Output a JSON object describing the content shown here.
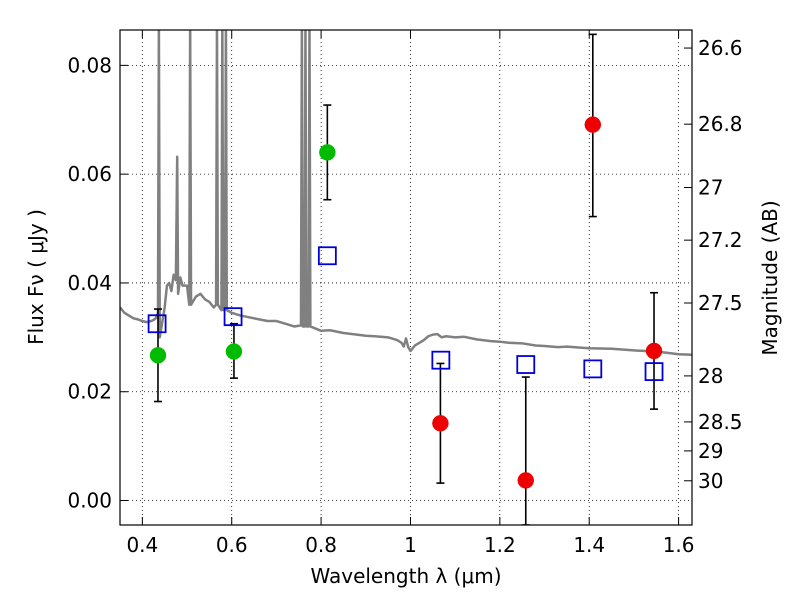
{
  "chart_data": {
    "type": "scatter",
    "title": "",
    "xlabel": "Wavelength  λ (μm)",
    "ylabel": "Flux  Fν  ( μJy )",
    "ylabel_right": "Magnitude (AB)",
    "xlim": [
      0.35,
      1.63
    ],
    "ylim": [
      -0.0045,
      0.0865
    ],
    "xticks": [
      {
        "value": 0.4,
        "label": "0.4"
      },
      {
        "value": 0.6,
        "label": "0.6"
      },
      {
        "value": 0.8,
        "label": "0.8"
      },
      {
        "value": 1.0,
        "label": "1"
      },
      {
        "value": 1.2,
        "label": "1.2"
      },
      {
        "value": 1.4,
        "label": "1.4"
      },
      {
        "value": 1.6,
        "label": "1.6"
      }
    ],
    "yticks": [
      {
        "value": 0.0,
        "label": "0.00"
      },
      {
        "value": 0.02,
        "label": "0.02"
      },
      {
        "value": 0.04,
        "label": "0.04"
      },
      {
        "value": 0.06,
        "label": "0.06"
      },
      {
        "value": 0.08,
        "label": "0.08"
      }
    ],
    "right_ticks": [
      {
        "mag": 26.6,
        "label": "26.6"
      },
      {
        "mag": 26.8,
        "label": "26.8"
      },
      {
        "mag": 27.0,
        "label": "27"
      },
      {
        "mag": 27.2,
        "label": "27.2"
      },
      {
        "mag": 27.5,
        "label": "27.5"
      },
      {
        "mag": 28.0,
        "label": "28"
      },
      {
        "mag": 28.5,
        "label": "28.5"
      },
      {
        "mag": 29.0,
        "label": "29"
      },
      {
        "mag": 30.0,
        "label": "30"
      }
    ],
    "grid": true,
    "series": [
      {
        "kind": "model_spectrum",
        "color": "#808080",
        "points": [
          [
            0.35,
            0.0355
          ],
          [
            0.36,
            0.0345
          ],
          [
            0.37,
            0.034
          ],
          [
            0.38,
            0.0335
          ],
          [
            0.39,
            0.0333
          ],
          [
            0.4,
            0.033
          ],
          [
            0.41,
            0.0328
          ],
          [
            0.42,
            0.033
          ],
          [
            0.425,
            0.0332
          ],
          [
            0.43,
            0.0335
          ],
          [
            0.435,
            0.0345
          ],
          [
            0.437,
            0.088
          ],
          [
            0.439,
            0.03
          ],
          [
            0.443,
            0.032
          ],
          [
            0.45,
            0.0355
          ],
          [
            0.455,
            0.0395
          ],
          [
            0.46,
            0.04
          ],
          [
            0.465,
            0.0385
          ],
          [
            0.47,
            0.0415
          ],
          [
            0.475,
            0.0405
          ],
          [
            0.478,
            0.0632
          ],
          [
            0.48,
            0.038
          ],
          [
            0.485,
            0.041
          ],
          [
            0.49,
            0.0395
          ],
          [
            0.5,
            0.0395
          ],
          [
            0.505,
            0.036
          ],
          [
            0.507,
            0.088
          ],
          [
            0.509,
            0.036
          ],
          [
            0.52,
            0.0375
          ],
          [
            0.53,
            0.038
          ],
          [
            0.54,
            0.037
          ],
          [
            0.55,
            0.0365
          ],
          [
            0.56,
            0.0355
          ],
          [
            0.565,
            0.036
          ],
          [
            0.567,
            0.088
          ],
          [
            0.569,
            0.036
          ],
          [
            0.577,
            0.035
          ],
          [
            0.579,
            0.088
          ],
          [
            0.581,
            0.035
          ],
          [
            0.585,
            0.0355
          ],
          [
            0.587,
            0.088
          ],
          [
            0.589,
            0.035
          ],
          [
            0.6,
            0.0345
          ],
          [
            0.62,
            0.034
          ],
          [
            0.65,
            0.0335
          ],
          [
            0.68,
            0.033
          ],
          [
            0.7,
            0.033
          ],
          [
            0.72,
            0.0325
          ],
          [
            0.74,
            0.032
          ],
          [
            0.755,
            0.0322
          ],
          [
            0.757,
            0.088
          ],
          [
            0.759,
            0.032
          ],
          [
            0.763,
            0.032
          ],
          [
            0.765,
            0.088
          ],
          [
            0.767,
            0.032
          ],
          [
            0.772,
            0.032
          ],
          [
            0.774,
            0.088
          ],
          [
            0.776,
            0.032
          ],
          [
            0.8,
            0.0312
          ],
          [
            0.82,
            0.0313
          ],
          [
            0.85,
            0.0308
          ],
          [
            0.88,
            0.0305
          ],
          [
            0.9,
            0.0303
          ],
          [
            0.92,
            0.0302
          ],
          [
            0.95,
            0.03
          ],
          [
            0.97,
            0.0295
          ],
          [
            0.98,
            0.029
          ],
          [
            0.985,
            0.0283
          ],
          [
            0.99,
            0.0298
          ],
          [
            0.995,
            0.0282
          ],
          [
            1.0,
            0.0275
          ],
          [
            1.01,
            0.0285
          ],
          [
            1.02,
            0.029
          ],
          [
            1.03,
            0.0295
          ],
          [
            1.04,
            0.0302
          ],
          [
            1.05,
            0.0305
          ],
          [
            1.06,
            0.0306
          ],
          [
            1.07,
            0.03
          ],
          [
            1.08,
            0.0302
          ],
          [
            1.1,
            0.03
          ],
          [
            1.12,
            0.0301
          ],
          [
            1.15,
            0.0296
          ],
          [
            1.18,
            0.0293
          ],
          [
            1.2,
            0.0292
          ],
          [
            1.22,
            0.029
          ],
          [
            1.25,
            0.0289
          ],
          [
            1.28,
            0.0285
          ],
          [
            1.3,
            0.0284
          ],
          [
            1.33,
            0.0282
          ],
          [
            1.35,
            0.0283
          ],
          [
            1.38,
            0.0281
          ],
          [
            1.4,
            0.028
          ],
          [
            1.45,
            0.0279
          ],
          [
            1.5,
            0.0276
          ],
          [
            1.55,
            0.0274
          ],
          [
            1.58,
            0.0271
          ],
          [
            1.6,
            0.0269
          ],
          [
            1.63,
            0.0268
          ]
        ]
      },
      {
        "kind": "observed_blue_band",
        "color": "#00bb00",
        "marker": "circle",
        "points": [
          {
            "x": 0.435,
            "y": 0.0267,
            "yerr_low": 0.0182,
            "yerr_high": 0.0352
          },
          {
            "x": 0.605,
            "y": 0.0274,
            "yerr_low": 0.0225,
            "yerr_high": 0.0325
          },
          {
            "x": 0.814,
            "y": 0.064,
            "yerr_low": 0.0553,
            "yerr_high": 0.0727
          }
        ]
      },
      {
        "kind": "observed_ir_band",
        "color": "#ee0000",
        "marker": "circle",
        "points": [
          {
            "x": 1.067,
            "y": 0.0142,
            "yerr_low": 0.0032,
            "yerr_high": 0.0252
          },
          {
            "x": 1.258,
            "y": 0.0037,
            "yerr_low": -0.0045,
            "yerr_high": 0.0227
          },
          {
            "x": 1.408,
            "y": 0.0691,
            "yerr_low": 0.0522,
            "yerr_high": 0.0857
          },
          {
            "x": 1.545,
            "y": 0.0275,
            "yerr_low": 0.0168,
            "yerr_high": 0.0382
          }
        ]
      },
      {
        "kind": "model_photometry",
        "color": "#0000dd",
        "marker": "square-open",
        "points": [
          {
            "x": 0.433,
            "y": 0.0325
          },
          {
            "x": 0.603,
            "y": 0.0338
          },
          {
            "x": 0.814,
            "y": 0.045
          },
          {
            "x": 1.068,
            "y": 0.0258
          },
          {
            "x": 1.258,
            "y": 0.025
          },
          {
            "x": 1.408,
            "y": 0.0242
          },
          {
            "x": 1.545,
            "y": 0.0237
          }
        ]
      }
    ]
  }
}
